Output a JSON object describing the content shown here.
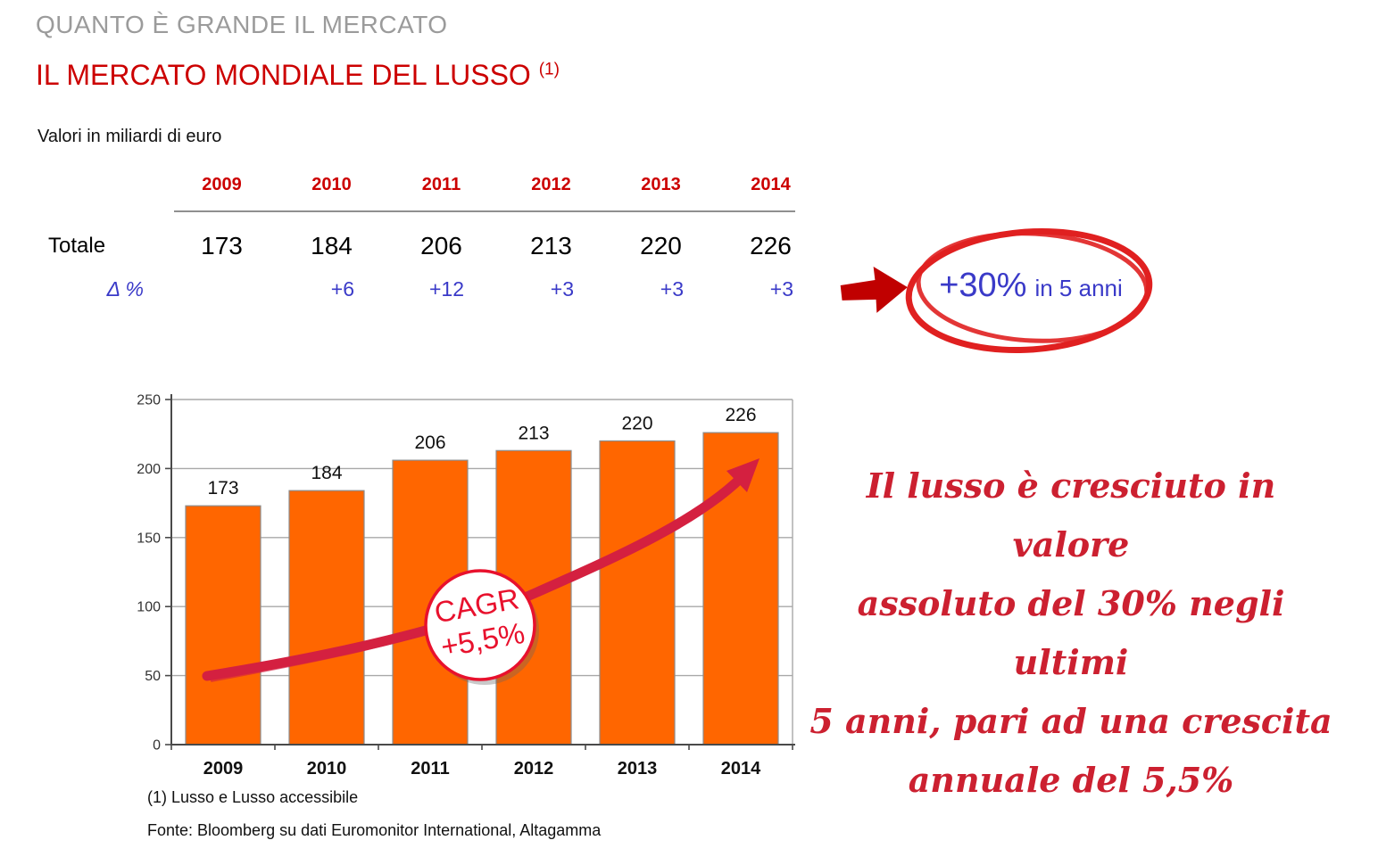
{
  "slide": {
    "kicker": "QUANTO È GRANDE IL MERCATO",
    "title": "IL MERCATO MONDIALE DEL LUSSO",
    "title_footnote_marker": "(1)",
    "units_note": "Valori in miliardi di euro",
    "footnote": "(1) Lusso e Lusso accessibile",
    "source": "Fonte: Bloomberg su dati Euromonitor International, Altagamma"
  },
  "table": {
    "years": [
      "2009",
      "2010",
      "2011",
      "2012",
      "2013",
      "2014"
    ],
    "total_label": "Totale",
    "totals": [
      "173",
      "184",
      "206",
      "213",
      "220",
      "226"
    ],
    "delta_label": "Δ %",
    "deltas": [
      "",
      "+6",
      "+12",
      "+3",
      "+3",
      "+3"
    ]
  },
  "highlight": {
    "value": "+30%",
    "suffix": "in 5 anni"
  },
  "note_lines": [
    "Il lusso è cresciuto in valore",
    "assoluto del 30% negli ultimi",
    "5 anni, pari ad una crescita",
    "annuale del 5,5%"
  ],
  "chart_data": {
    "type": "bar",
    "title": "",
    "xlabel": "",
    "ylabel": "",
    "categories": [
      "2009",
      "2010",
      "2011",
      "2012",
      "2013",
      "2014"
    ],
    "values": [
      173,
      184,
      206,
      213,
      220,
      226
    ],
    "ylim": [
      0,
      250
    ],
    "ytick_step": 50,
    "grid": true,
    "legend": "none",
    "annotation": {
      "badge_line1": "CAGR",
      "badge_line2": "+5,5%",
      "trend": "hand-drawn rising arrow from ~50 level (2009) to ~200 level (2014)"
    }
  },
  "colors": {
    "kicker-gray": "#9B9B9B",
    "title-red": "#CC0000",
    "table-blue": "#3A3AC8",
    "bar-orange": "#FF6600",
    "bar-border": "#8C8C8C",
    "grid-gray": "#A8A8A8",
    "axis-gray": "#4A4A4A",
    "annotation-red": "#D42040",
    "arrow-dark-red": "#C00000",
    "circle-red": "#E02020",
    "badge-red": "#E8112D",
    "script-red": "#CC2030"
  }
}
